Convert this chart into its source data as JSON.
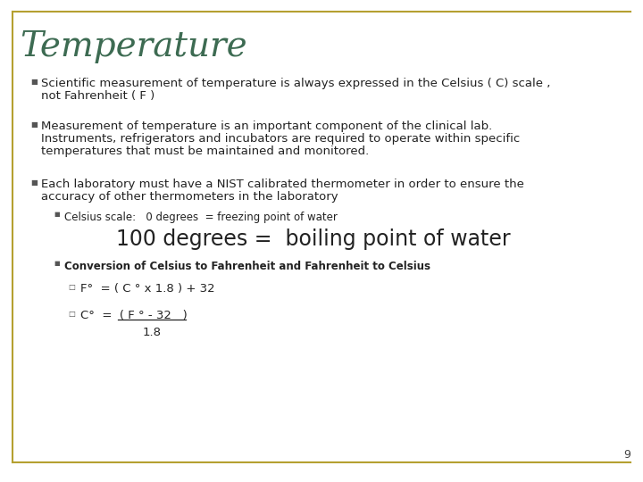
{
  "title": "Temperature",
  "title_color": "#3d6b52",
  "title_fontsize": 28,
  "bg_color": "#ffffff",
  "border_color": "#b5a030",
  "slide_number": "9",
  "bullet1_line1": "Scientific measurement of temperature is always expressed in the Celsius ( C) scale ,",
  "bullet1_line2": "not Fahrenheit ( F )",
  "bullet2_line1": "Measurement of temperature is an important component of the clinical lab.",
  "bullet2_line2": "Instruments, refrigerators and incubators are required to operate within specific",
  "bullet2_line3": "temperatures that must be maintained and monitored.",
  "bullet3_line1": "Each laboratory must have a NIST calibrated thermometer in order to ensure the",
  "bullet3_line2": "accuracy of other thermometers in the laboratory",
  "sub1_small": "Celsius scale:   0 degrees  = freezing point of water",
  "sub1_large": "100 degrees =  boiling point of water",
  "sub2_bold": "Conversion of Celsius to Fahrenheit and Fahrenheit to Celsius",
  "formula1": "F°  = ( C ° x 1.8 ) + 32",
  "formula2_line1": "C°  =  ( F ° - 32   )",
  "formula2_line2": "1.8",
  "text_fontsize": 9.5,
  "sub_fontsize": 8.5,
  "large_fontsize": 17
}
